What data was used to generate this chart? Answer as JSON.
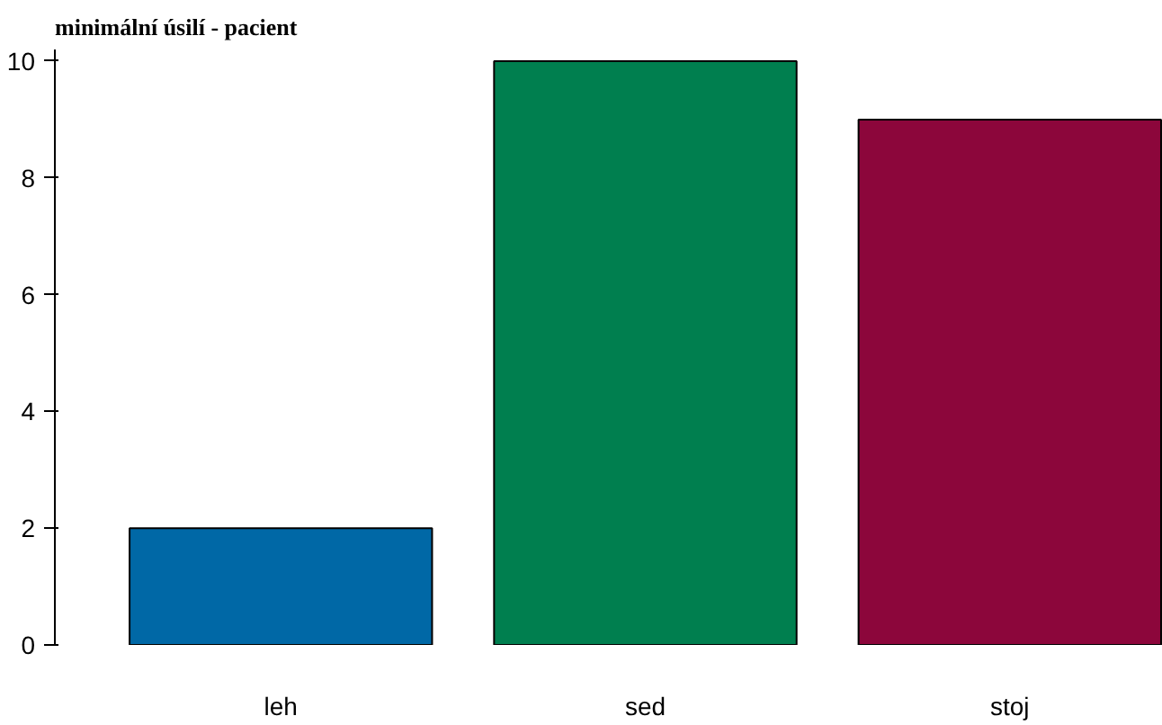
{
  "chart_data": {
    "type": "bar",
    "title": "minimální úsilí - pacient",
    "categories": [
      "leh",
      "sed",
      "stoj"
    ],
    "values": [
      2,
      10,
      9
    ],
    "colors": [
      "#0068a6",
      "#007f4f",
      "#8c063b"
    ],
    "ylim": [
      0,
      10.2
    ],
    "yticks": [
      0,
      2,
      4,
      6,
      8,
      10
    ],
    "grid": false
  }
}
